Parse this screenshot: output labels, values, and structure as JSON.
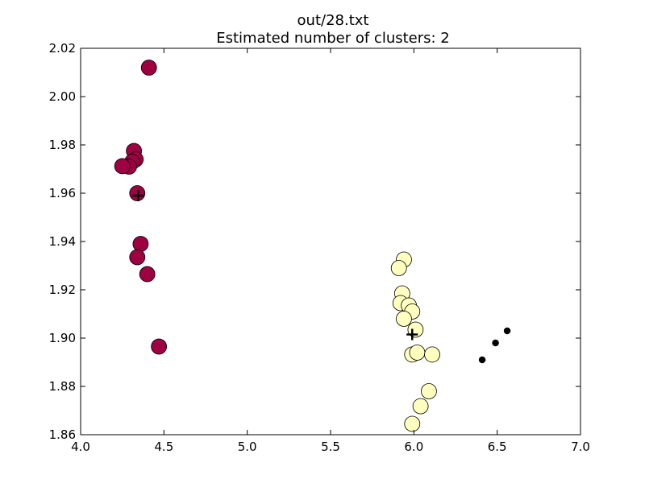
{
  "chart_data": {
    "type": "scatter",
    "title": "out/28.txt",
    "subtitle": "Estimated number of clusters: 2",
    "xlabel": "",
    "ylabel": "",
    "xlim": [
      4.0,
      7.0
    ],
    "ylim": [
      1.86,
      2.02
    ],
    "xticks": [
      "4.0",
      "4.5",
      "5.0",
      "5.5",
      "6.0",
      "6.5",
      "7.0"
    ],
    "yticks": [
      "1.86",
      "1.88",
      "1.90",
      "1.92",
      "1.94",
      "1.96",
      "1.98",
      "2.00",
      "2.02"
    ],
    "grid": false,
    "legend": "none",
    "series": [
      {
        "color": "#9e0142",
        "marker": "large-circle",
        "points": [
          [
            4.41,
            2.012
          ],
          [
            4.32,
            1.9775
          ],
          [
            4.33,
            1.974
          ],
          [
            4.31,
            1.973
          ],
          [
            4.29,
            1.971
          ],
          [
            4.25,
            1.9712
          ],
          [
            4.34,
            1.96
          ],
          [
            4.36,
            1.939
          ],
          [
            4.34,
            1.9335
          ],
          [
            4.4,
            1.9265
          ],
          [
            4.47,
            1.8965
          ]
        ]
      },
      {
        "color": "#ffffbf",
        "marker": "large-circle",
        "points": [
          [
            5.94,
            1.9325
          ],
          [
            5.91,
            1.929
          ],
          [
            5.93,
            1.9185
          ],
          [
            5.92,
            1.9145
          ],
          [
            5.97,
            1.9135
          ],
          [
            5.99,
            1.911
          ],
          [
            5.94,
            1.908
          ],
          [
            6.01,
            1.9035
          ],
          [
            5.99,
            1.8932
          ],
          [
            6.02,
            1.894
          ],
          [
            6.11,
            1.8932
          ],
          [
            6.09,
            1.878
          ],
          [
            6.04,
            1.8718
          ],
          [
            5.99,
            1.8645
          ]
        ]
      },
      {
        "color": "#000000",
        "marker": "small-dot",
        "points": [
          [
            6.41,
            1.891
          ],
          [
            6.49,
            1.898
          ],
          [
            6.56,
            1.903
          ]
        ]
      }
    ],
    "centers": [
      [
        4.345,
        1.959
      ],
      [
        5.99,
        1.9015
      ]
    ]
  }
}
